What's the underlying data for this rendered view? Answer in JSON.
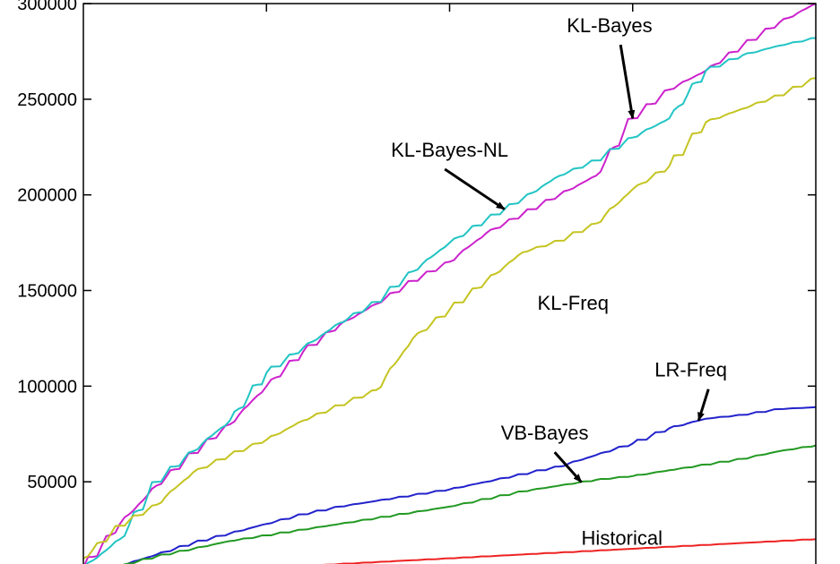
{
  "chart_data": {
    "type": "line",
    "title": "",
    "xlabel": "",
    "ylabel": "",
    "ylim": [
      0,
      300000
    ],
    "yticks": [
      50000,
      100000,
      150000,
      200000,
      250000,
      300000
    ],
    "ytick_labels": [
      "50000",
      "100000",
      "150000",
      "200000",
      "250000",
      "300000"
    ],
    "x": [
      0,
      5,
      10,
      15,
      20,
      25,
      30,
      35,
      40,
      45,
      50,
      55,
      60,
      65,
      70,
      75,
      80,
      85,
      90,
      95,
      100
    ],
    "grid": false,
    "series": [
      {
        "name": "KL-Bayes",
        "color": "#cc22cc",
        "values": [
          5000,
          28000,
          48000,
          65000,
          80000,
          100000,
          118000,
          132000,
          143000,
          155000,
          165000,
          180000,
          190000,
          200000,
          210000,
          240000,
          255000,
          265000,
          278000,
          290000,
          300000
        ]
      },
      {
        "name": "KL-Bayes-NL",
        "color": "#22c4c4",
        "values": [
          5000,
          20000,
          50000,
          66000,
          82000,
          107000,
          120000,
          133000,
          144000,
          160000,
          175000,
          187000,
          198000,
          210000,
          218000,
          230000,
          240000,
          265000,
          273000,
          278000,
          282000
        ]
      },
      {
        "name": "KL-Freq",
        "color": "#c4c422",
        "values": [
          10000,
          27000,
          38000,
          55000,
          64000,
          72000,
          82000,
          90000,
          98000,
          125000,
          140000,
          155000,
          170000,
          176000,
          185000,
          203000,
          215000,
          238000,
          245000,
          252000,
          261000
        ]
      },
      {
        "name": "LR-Freq",
        "color": "#2222cc",
        "values": [
          0,
          6000,
          12000,
          18000,
          23000,
          28000,
          33000,
          37000,
          40000,
          43000,
          46000,
          50000,
          54000,
          58000,
          64000,
          70000,
          78000,
          83000,
          85000,
          88000,
          89000
        ]
      },
      {
        "name": "VB-Bayes",
        "color": "#229922",
        "values": [
          0,
          6000,
          11000,
          15000,
          19000,
          22000,
          25000,
          28000,
          31000,
          34000,
          37000,
          41000,
          45000,
          48000,
          51000,
          53000,
          56000,
          59000,
          62000,
          66000,
          69000
        ]
      },
      {
        "name": "Historical",
        "color": "#ee2222",
        "values": [
          0,
          1000,
          2000,
          3000,
          4000,
          5000,
          6000,
          7000,
          8000,
          9000,
          10000,
          11000,
          12000,
          13000,
          14000,
          15000,
          16000,
          17000,
          18000,
          19000,
          20000
        ]
      }
    ],
    "annotations": [
      {
        "text": "KL-Bayes",
        "series": "KL-Bayes",
        "point_x": 75,
        "label_x": 66,
        "label_y": 285000
      },
      {
        "text": "KL-Bayes-NL",
        "series": "KL-Bayes-NL",
        "point_x": 57.5,
        "label_x": 42,
        "label_y": 220000
      },
      {
        "text": "KL-Freq",
        "series": "KL-Freq",
        "point_x": null,
        "label_x": 62,
        "label_y": 140000
      },
      {
        "text": "LR-Freq",
        "series": "LR-Freq",
        "point_x": 84,
        "label_x": 78,
        "label_y": 105000
      },
      {
        "text": "VB-Bayes",
        "series": "VB-Bayes",
        "point_x": 68,
        "label_x": 57,
        "label_y": 72000
      },
      {
        "text": "Historical",
        "series": "Historical",
        "point_x": null,
        "label_x": 68,
        "label_y": 17000
      }
    ]
  }
}
